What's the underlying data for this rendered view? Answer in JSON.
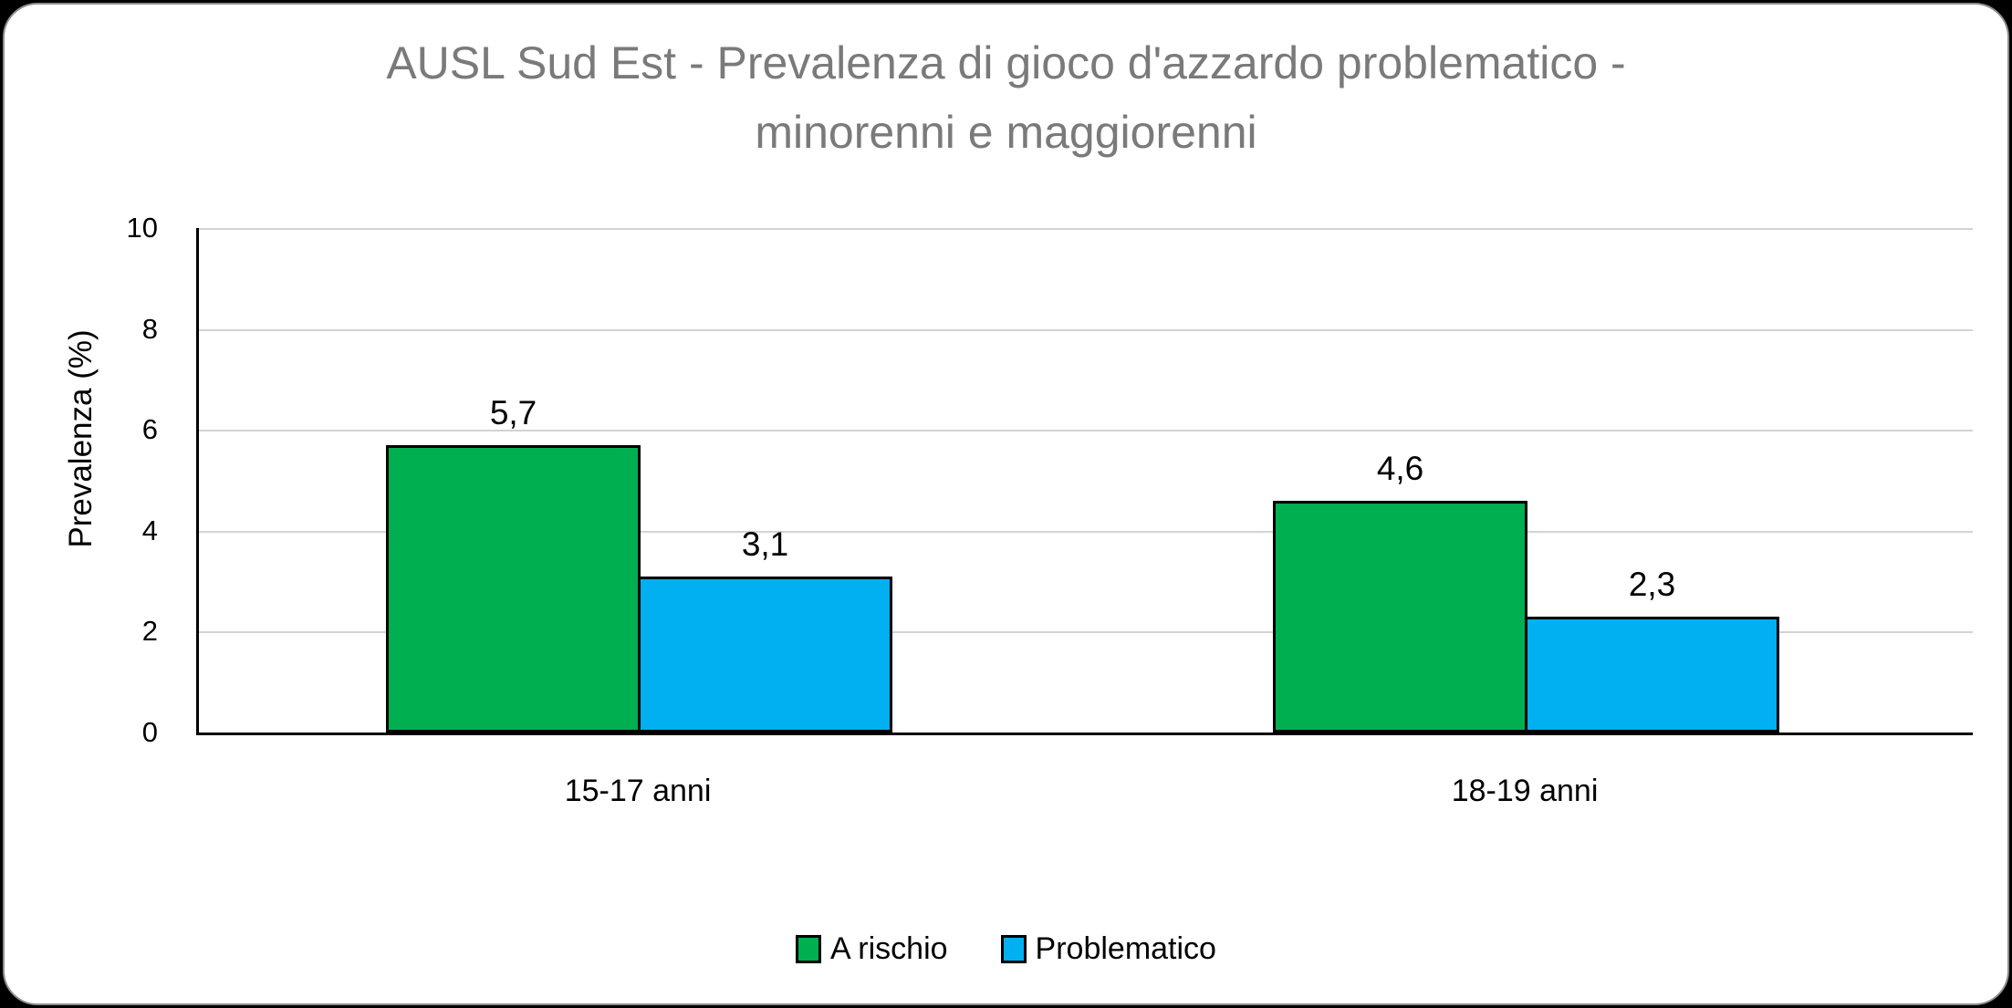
{
  "chart_data": {
    "type": "bar",
    "title": "AUSL Sud Est - Prevalenza di gioco d'azzardo problematico - minorenni e maggiorenni",
    "title_lines": [
      "AUSL Sud Est - Prevalenza di gioco d'azzardo problematico -",
      "minorenni e maggiorenni"
    ],
    "xlabel": "",
    "ylabel": "Prevalenza (%)",
    "ylim": [
      0,
      10
    ],
    "yticks": [
      0,
      2,
      4,
      6,
      8,
      10
    ],
    "grid": true,
    "legend_position": "bottom",
    "categories": [
      "15-17 anni",
      "18-19 anni"
    ],
    "series": [
      {
        "name": "A rischio",
        "color": "#00B050",
        "values": [
          5.7,
          4.6
        ],
        "value_labels": [
          "5,7",
          "4,6"
        ]
      },
      {
        "name": "Problematico",
        "color": "#00B0F0",
        "values": [
          3.1,
          2.3
        ],
        "value_labels": [
          "3,1",
          "2,3"
        ]
      }
    ]
  },
  "colors": {
    "title_text": "#7A7A7A",
    "axis": "#000000",
    "gridline": "#D3D3D3",
    "card_border": "#8E8E8E",
    "series_green": "#00B050",
    "series_blue": "#00B0F0"
  }
}
